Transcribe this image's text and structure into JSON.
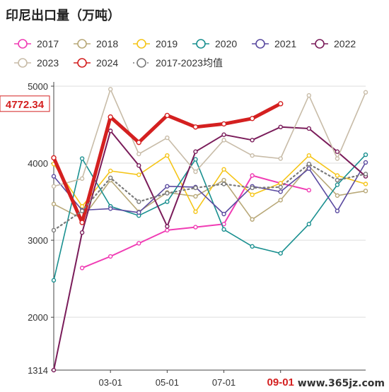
{
  "title": "印尼出口量（万吨）",
  "watermark": "www.365jz.com",
  "chart_data": {
    "type": "line",
    "title": "印尼出口量（万吨）",
    "xlabel": "",
    "ylabel": "",
    "ylim": [
      1314,
      5000
    ],
    "yticks": [
      1314,
      2000,
      3000,
      4000,
      5000
    ],
    "x": [
      "01-01",
      "02-01",
      "03-01",
      "04-01",
      "05-01",
      "06-01",
      "07-01",
      "08-01",
      "09-01",
      "10-01",
      "11-01",
      "12-01"
    ],
    "xtick_labels": [
      "03-01",
      "05-01",
      "07-01",
      "09-01"
    ],
    "xtick_highlight": "09-01",
    "current_value_label": "4772.34",
    "grid": true,
    "legend_position": "top",
    "series": [
      {
        "name": "2017",
        "color": "#f03cb4",
        "width": 2,
        "dash": false,
        "values": [
          null,
          2640,
          2790,
          2960,
          3130,
          3170,
          3210,
          3840,
          3740,
          3650,
          null,
          null
        ]
      },
      {
        "name": "2018",
        "color": "#b8a878",
        "width": 1.6,
        "dash": false,
        "values": [
          3470,
          3280,
          3780,
          3370,
          3620,
          3570,
          3780,
          3270,
          3520,
          3960,
          3580,
          3640
        ]
      },
      {
        "name": "2019",
        "color": "#f5c518",
        "width": 1.6,
        "dash": false,
        "values": [
          3990,
          3440,
          3900,
          3850,
          4100,
          3370,
          3920,
          3590,
          3740,
          4100,
          3840,
          3730
        ]
      },
      {
        "name": "2020",
        "color": "#1a9090",
        "width": 1.6,
        "dash": false,
        "values": [
          2480,
          4060,
          3440,
          3320,
          3500,
          4050,
          3140,
          2920,
          2830,
          3210,
          3720,
          4110
        ]
      },
      {
        "name": "2021",
        "color": "#5a4aa0",
        "width": 1.6,
        "dash": false,
        "values": [
          3830,
          3390,
          3410,
          3360,
          3700,
          3690,
          3340,
          3700,
          3630,
          3930,
          3380,
          4010
        ]
      },
      {
        "name": "2022",
        "color": "#7a1c5a",
        "width": 2,
        "dash": false,
        "values": [
          1314,
          3100,
          4420,
          3970,
          3180,
          4150,
          4370,
          4300,
          4470,
          4450,
          4150,
          3830
        ]
      },
      {
        "name": "2023",
        "color": "#c8bca8",
        "width": 1.6,
        "dash": false,
        "values": [
          3700,
          3800,
          4960,
          4120,
          4330,
          3890,
          4300,
          4100,
          4060,
          4880,
          4060,
          4920
        ]
      },
      {
        "name": "2024",
        "color": "#d42020",
        "width": 5,
        "dash": false,
        "values": [
          4070,
          3230,
          4600,
          4270,
          4620,
          4470,
          4510,
          4580,
          4772.34,
          null,
          null,
          null
        ]
      },
      {
        "name": "2017-2023均值",
        "color": "#7a7a7a",
        "width": 2.2,
        "dash": true,
        "values": [
          3130,
          3380,
          3810,
          3500,
          3610,
          3680,
          3730,
          3680,
          3690,
          3990,
          3780,
          3860
        ]
      }
    ]
  }
}
